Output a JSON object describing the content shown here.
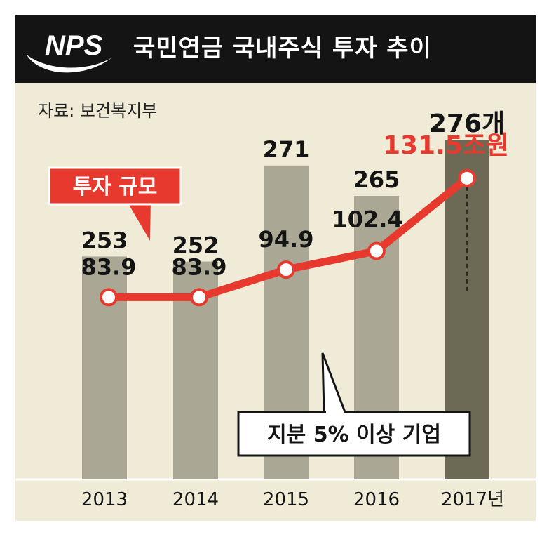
{
  "header": {
    "logo_text": "NPS",
    "title": "국민연금 국내주식 투자 추이"
  },
  "source": "자료: 보건복지부",
  "colors": {
    "line": "#e8392e",
    "bar": "#aaa894",
    "bar_highlight": "#6c6a55",
    "background": "#efebd7",
    "header": "#141414"
  },
  "chart_data": {
    "type": "bar+line",
    "categories": [
      "2013",
      "2014",
      "2015",
      "2016",
      "2017년"
    ],
    "series": [
      {
        "name": "투자 규모",
        "type": "line",
        "values": [
          83.9,
          83.9,
          94.9,
          102.4,
          131.5
        ],
        "labels": [
          "83.9",
          "83.9",
          "94.9",
          "102.4",
          "131.5조원"
        ]
      },
      {
        "name": "지분 5% 이상 기업",
        "type": "bar",
        "values": [
          253,
          252,
          271,
          265,
          276
        ],
        "labels": [
          "253",
          "252",
          "271",
          "265",
          "276개"
        ]
      }
    ],
    "callouts": {
      "line": "투자 규모",
      "bar": "지분 5% 이상 기업"
    }
  }
}
